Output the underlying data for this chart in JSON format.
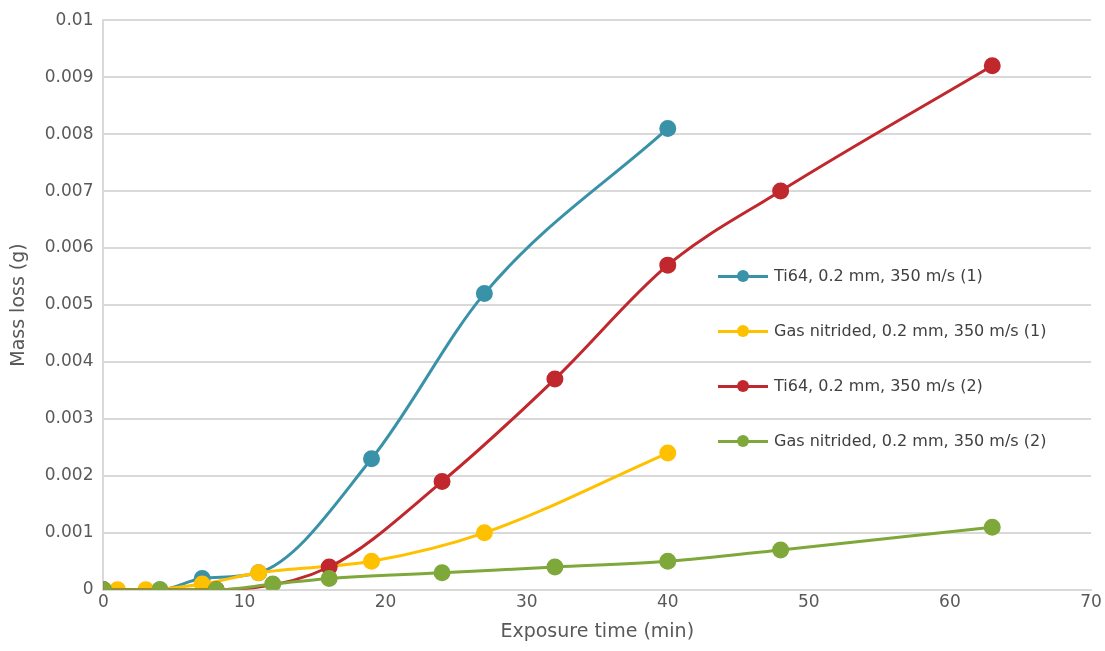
{
  "chart_data": {
    "type": "line",
    "xlabel": "Exposure time (min)",
    "ylabel": "Mass loss (g)",
    "xlim": [
      0,
      70
    ],
    "xticks": [
      0,
      10,
      20,
      30,
      40,
      50,
      60,
      70
    ],
    "ylim": [
      0,
      0.01
    ],
    "yticks": [
      0,
      0.001,
      0.002,
      0.003,
      0.004,
      0.005,
      0.006,
      0.007,
      0.008,
      0.009,
      0.01
    ],
    "grid": "y",
    "legend": "right",
    "marker": "circle",
    "line_style": "solid",
    "series": [
      {
        "name": "Ti64, 0.2 mm, 350 m/s (1)",
        "color": "#3a92a8",
        "x": [
          0,
          4,
          7,
          11,
          19,
          27,
          40
        ],
        "values": [
          0,
          0,
          0.0002,
          0.0003,
          0.0023,
          0.0052,
          0.0081
        ]
      },
      {
        "name": "Gas nitrided, 0.2 mm, 350 m/s (1)",
        "color": "#ffc000",
        "x": [
          1,
          3,
          7,
          11,
          19,
          27,
          40
        ],
        "values": [
          0,
          0,
          0.0001,
          0.0003,
          0.0005,
          0.001,
          0.0024
        ]
      },
      {
        "name": "Ti64, 0.2 mm, 350 m/s (2)",
        "color": "#c0282d",
        "x": [
          0,
          8,
          16,
          24,
          32,
          40,
          48,
          63
        ],
        "values": [
          0,
          0,
          0.0004,
          0.0019,
          0.0037,
          0.0057,
          0.007,
          0.0092
        ]
      },
      {
        "name": "Gas nitrided, 0.2 mm, 350 m/s (2)",
        "color": "#7ea83a",
        "x": [
          0,
          4,
          8,
          12,
          16,
          24,
          32,
          40,
          48,
          63
        ],
        "values": [
          0,
          0,
          0,
          0.0001,
          0.0002,
          0.0003,
          0.0004,
          0.0005,
          0.0007,
          0.0011
        ]
      }
    ]
  }
}
